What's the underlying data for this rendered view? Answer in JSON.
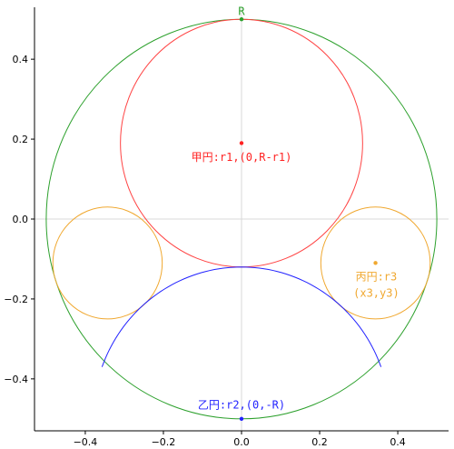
{
  "chart_data": {
    "type": "diagram",
    "xlim": [
      -0.53,
      0.53
    ],
    "ylim": [
      -0.53,
      0.53
    ],
    "xticks": [
      -0.4,
      -0.2,
      0.0,
      0.2,
      0.4
    ],
    "yticks": [
      -0.4,
      -0.2,
      0.0,
      0.2,
      0.4
    ],
    "xtick_labels": [
      "−0.4",
      "−0.2",
      "0.0",
      "0.2",
      "0.4"
    ],
    "ytick_labels": [
      "−0.4",
      "−0.2",
      "0.0",
      "0.2",
      "0.4"
    ],
    "grid": false,
    "crosshair_lines": true,
    "R": 0.5,
    "circles": [
      {
        "id": "outer",
        "cx": 0.0,
        "cy": 0.0,
        "r": 0.5,
        "color": "#2ca02c"
      },
      {
        "id": "ko",
        "cx": 0.0,
        "cy": 0.19,
        "r": 0.31,
        "color": "#ff4444"
      },
      {
        "id": "hei-left",
        "cx": -0.343,
        "cy": -0.11,
        "r": 0.14,
        "color": "#f0a830"
      },
      {
        "id": "hei-right",
        "cx": 0.343,
        "cy": -0.11,
        "r": 0.14,
        "color": "#f0a830"
      }
    ],
    "arcs": [
      {
        "id": "otsu",
        "cx": 0.0,
        "cy": -0.5,
        "r": 0.38,
        "theta_start_deg": 20,
        "theta_end_deg": 160,
        "color": "#2222ff"
      }
    ],
    "points": [
      {
        "id": "top-point",
        "x": 0.0,
        "y": 0.5,
        "color": "#2ca02c"
      },
      {
        "id": "ko-center",
        "x": 0.0,
        "y": 0.19,
        "color": "#ff2222"
      },
      {
        "id": "hei-center",
        "x": 0.343,
        "y": -0.11,
        "color": "#f0a830"
      },
      {
        "id": "otsu-center",
        "x": 0.0,
        "y": -0.5,
        "color": "#2222ff"
      }
    ],
    "labels": [
      {
        "id": "R",
        "text": "R",
        "x": 0.0,
        "y": 0.52,
        "color": "#2ca02c"
      },
      {
        "id": "ko",
        "text": "甲円:r1,(0,R-r1)",
        "x": 0.0,
        "y": 0.155,
        "color": "#ff2222"
      },
      {
        "id": "hei1",
        "text": "丙円:r3",
        "x": 0.345,
        "y": -0.145,
        "color": "#f0a830"
      },
      {
        "id": "hei2",
        "text": "(x3,y3)",
        "x": 0.345,
        "y": -0.185,
        "color": "#f0a830"
      },
      {
        "id": "otsu",
        "text": "乙円:r2,(0,-R)",
        "x": 0.0,
        "y": -0.465,
        "color": "#2222ff"
      }
    ]
  }
}
